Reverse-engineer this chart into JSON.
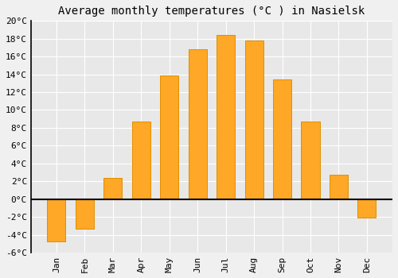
{
  "title": "Average monthly temperatures (°C ) in Nasielsk",
  "months": [
    "Jan",
    "Feb",
    "Mar",
    "Apr",
    "May",
    "Jun",
    "Jul",
    "Aug",
    "Sep",
    "Oct",
    "Nov",
    "Dec"
  ],
  "values": [
    -4.8,
    -3.3,
    2.4,
    8.7,
    13.9,
    16.8,
    18.4,
    17.8,
    13.4,
    8.7,
    2.7,
    -2.1
  ],
  "bar_color": "#FFA726",
  "bar_edge_color": "#E09000",
  "fig_background": "#f0f0f0",
  "plot_background": "#e8e8e8",
  "grid_color": "#ffffff",
  "zero_line_color": "#000000",
  "ylim": [
    -6,
    20
  ],
  "yticks": [
    -6,
    -4,
    -2,
    0,
    2,
    4,
    6,
    8,
    10,
    12,
    14,
    16,
    18,
    20
  ],
  "ytick_labels": [
    "-6°C",
    "-4°C",
    "-2°C",
    "0°C",
    "2°C",
    "4°C",
    "6°C",
    "8°C",
    "10°C",
    "12°C",
    "14°C",
    "16°C",
    "18°C",
    "20°C"
  ],
  "title_fontsize": 10,
  "tick_fontsize": 8,
  "font_family": "monospace",
  "bar_width": 0.65
}
